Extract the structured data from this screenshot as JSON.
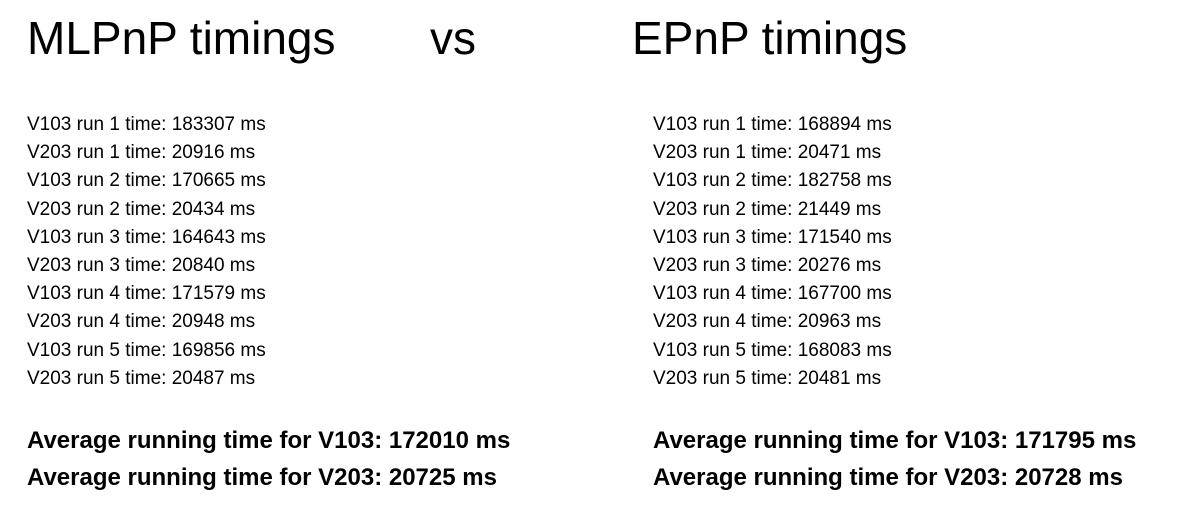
{
  "titles": {
    "left": "MLPnP timings",
    "vs": "vs",
    "right": "EPnP timings"
  },
  "mlpnp": {
    "runs": [
      "V103 run 1 time: 183307 ms",
      "V203 run 1 time: 20916 ms",
      "V103 run 2 time: 170665 ms",
      "V203 run 2 time: 20434 ms",
      "V103 run 3 time: 164643 ms",
      "V203 run 3 time: 20840 ms",
      "V103 run 4 time: 171579 ms",
      "V203 run 4 time: 20948 ms",
      "V103 run 5 time: 169856 ms",
      "V203 run 5 time: 20487 ms"
    ],
    "averages": [
      "Average running time for V103: 172010 ms",
      "Average running time for V203: 20725 ms"
    ]
  },
  "epnp": {
    "runs": [
      "V103 run 1 time: 168894 ms",
      "V203 run 1 time: 20471 ms",
      "V103 run 2 time: 182758 ms",
      "V203 run 2 time: 21449 ms",
      "V103 run 3 time: 171540 ms",
      "V203 run 3 time: 20276 ms",
      "V103 run 4 time: 167700 ms",
      "V203 run 4 time: 20963 ms",
      "V103 run 5 time: 168083 ms",
      "V203 run 5 time: 20481 ms"
    ],
    "averages": [
      "Average running time for V103: 171795 ms",
      "Average running time for V203: 20728 ms"
    ]
  }
}
